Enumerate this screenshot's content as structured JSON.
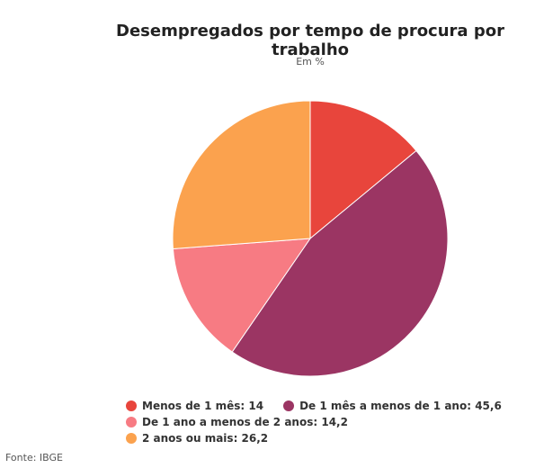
{
  "chart_data": {
    "type": "pie",
    "title": "Desempregados por tempo de procura por trabalho",
    "subtitle": "Em %",
    "categories": [
      "Menos de 1 mês",
      "De 1 mês a menos de 1 ano",
      "De 1 ano a menos de 2 anos",
      "2 anos ou mais"
    ],
    "values": [
      14,
      45.6,
      14.2,
      26.2
    ],
    "value_labels": [
      "14",
      "45,6",
      "14,2",
      "26,2"
    ],
    "colors": [
      "#e8453c",
      "#9b3563",
      "#f77b83",
      "#fba24e"
    ]
  },
  "source": "Fonte: IBGE"
}
